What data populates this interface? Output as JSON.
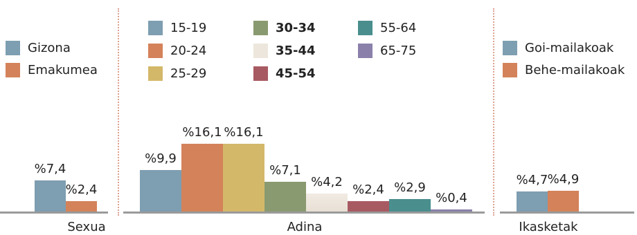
{
  "chart_data": [
    {
      "type": "bar",
      "xlabel": "Sexua",
      "categories": [
        "Gizona",
        "Emakumea"
      ],
      "values": [
        7.4,
        2.4
      ],
      "value_labels": [
        "%7,4",
        "%2,4"
      ],
      "colors": [
        "#7e9eb1",
        "#d4825a"
      ],
      "legend": "top-left"
    },
    {
      "type": "bar",
      "xlabel": "Adina",
      "categories": [
        "15-19",
        "20-24",
        "25-29",
        "30-34",
        "35-44",
        "45-54",
        "55-64",
        "65-75"
      ],
      "values": [
        9.9,
        16.1,
        16.1,
        7.1,
        4.2,
        2.4,
        2.9,
        0.4
      ],
      "value_labels": [
        "%9,9",
        "%16,1",
        "%16,1",
        "%7,1",
        "%4,2",
        "%2,4",
        "%2,9",
        "%0,4"
      ],
      "colors": [
        "#7e9eb1",
        "#d4825a",
        "#d4b86a",
        "#8a9a70",
        "#ede6dc",
        "#a85a62",
        "#4a8e8e",
        "#8a80aa"
      ],
      "legend": "top"
    },
    {
      "type": "bar",
      "xlabel": "Ikasketak",
      "categories": [
        "Goi-mailakoak",
        "Behe-mailakoak"
      ],
      "values": [
        4.7,
        4.9
      ],
      "value_labels": [
        "%4,7",
        "%4,9"
      ],
      "colors": [
        "#7e9eb1",
        "#d4825a"
      ],
      "legend": "top-left"
    }
  ]
}
